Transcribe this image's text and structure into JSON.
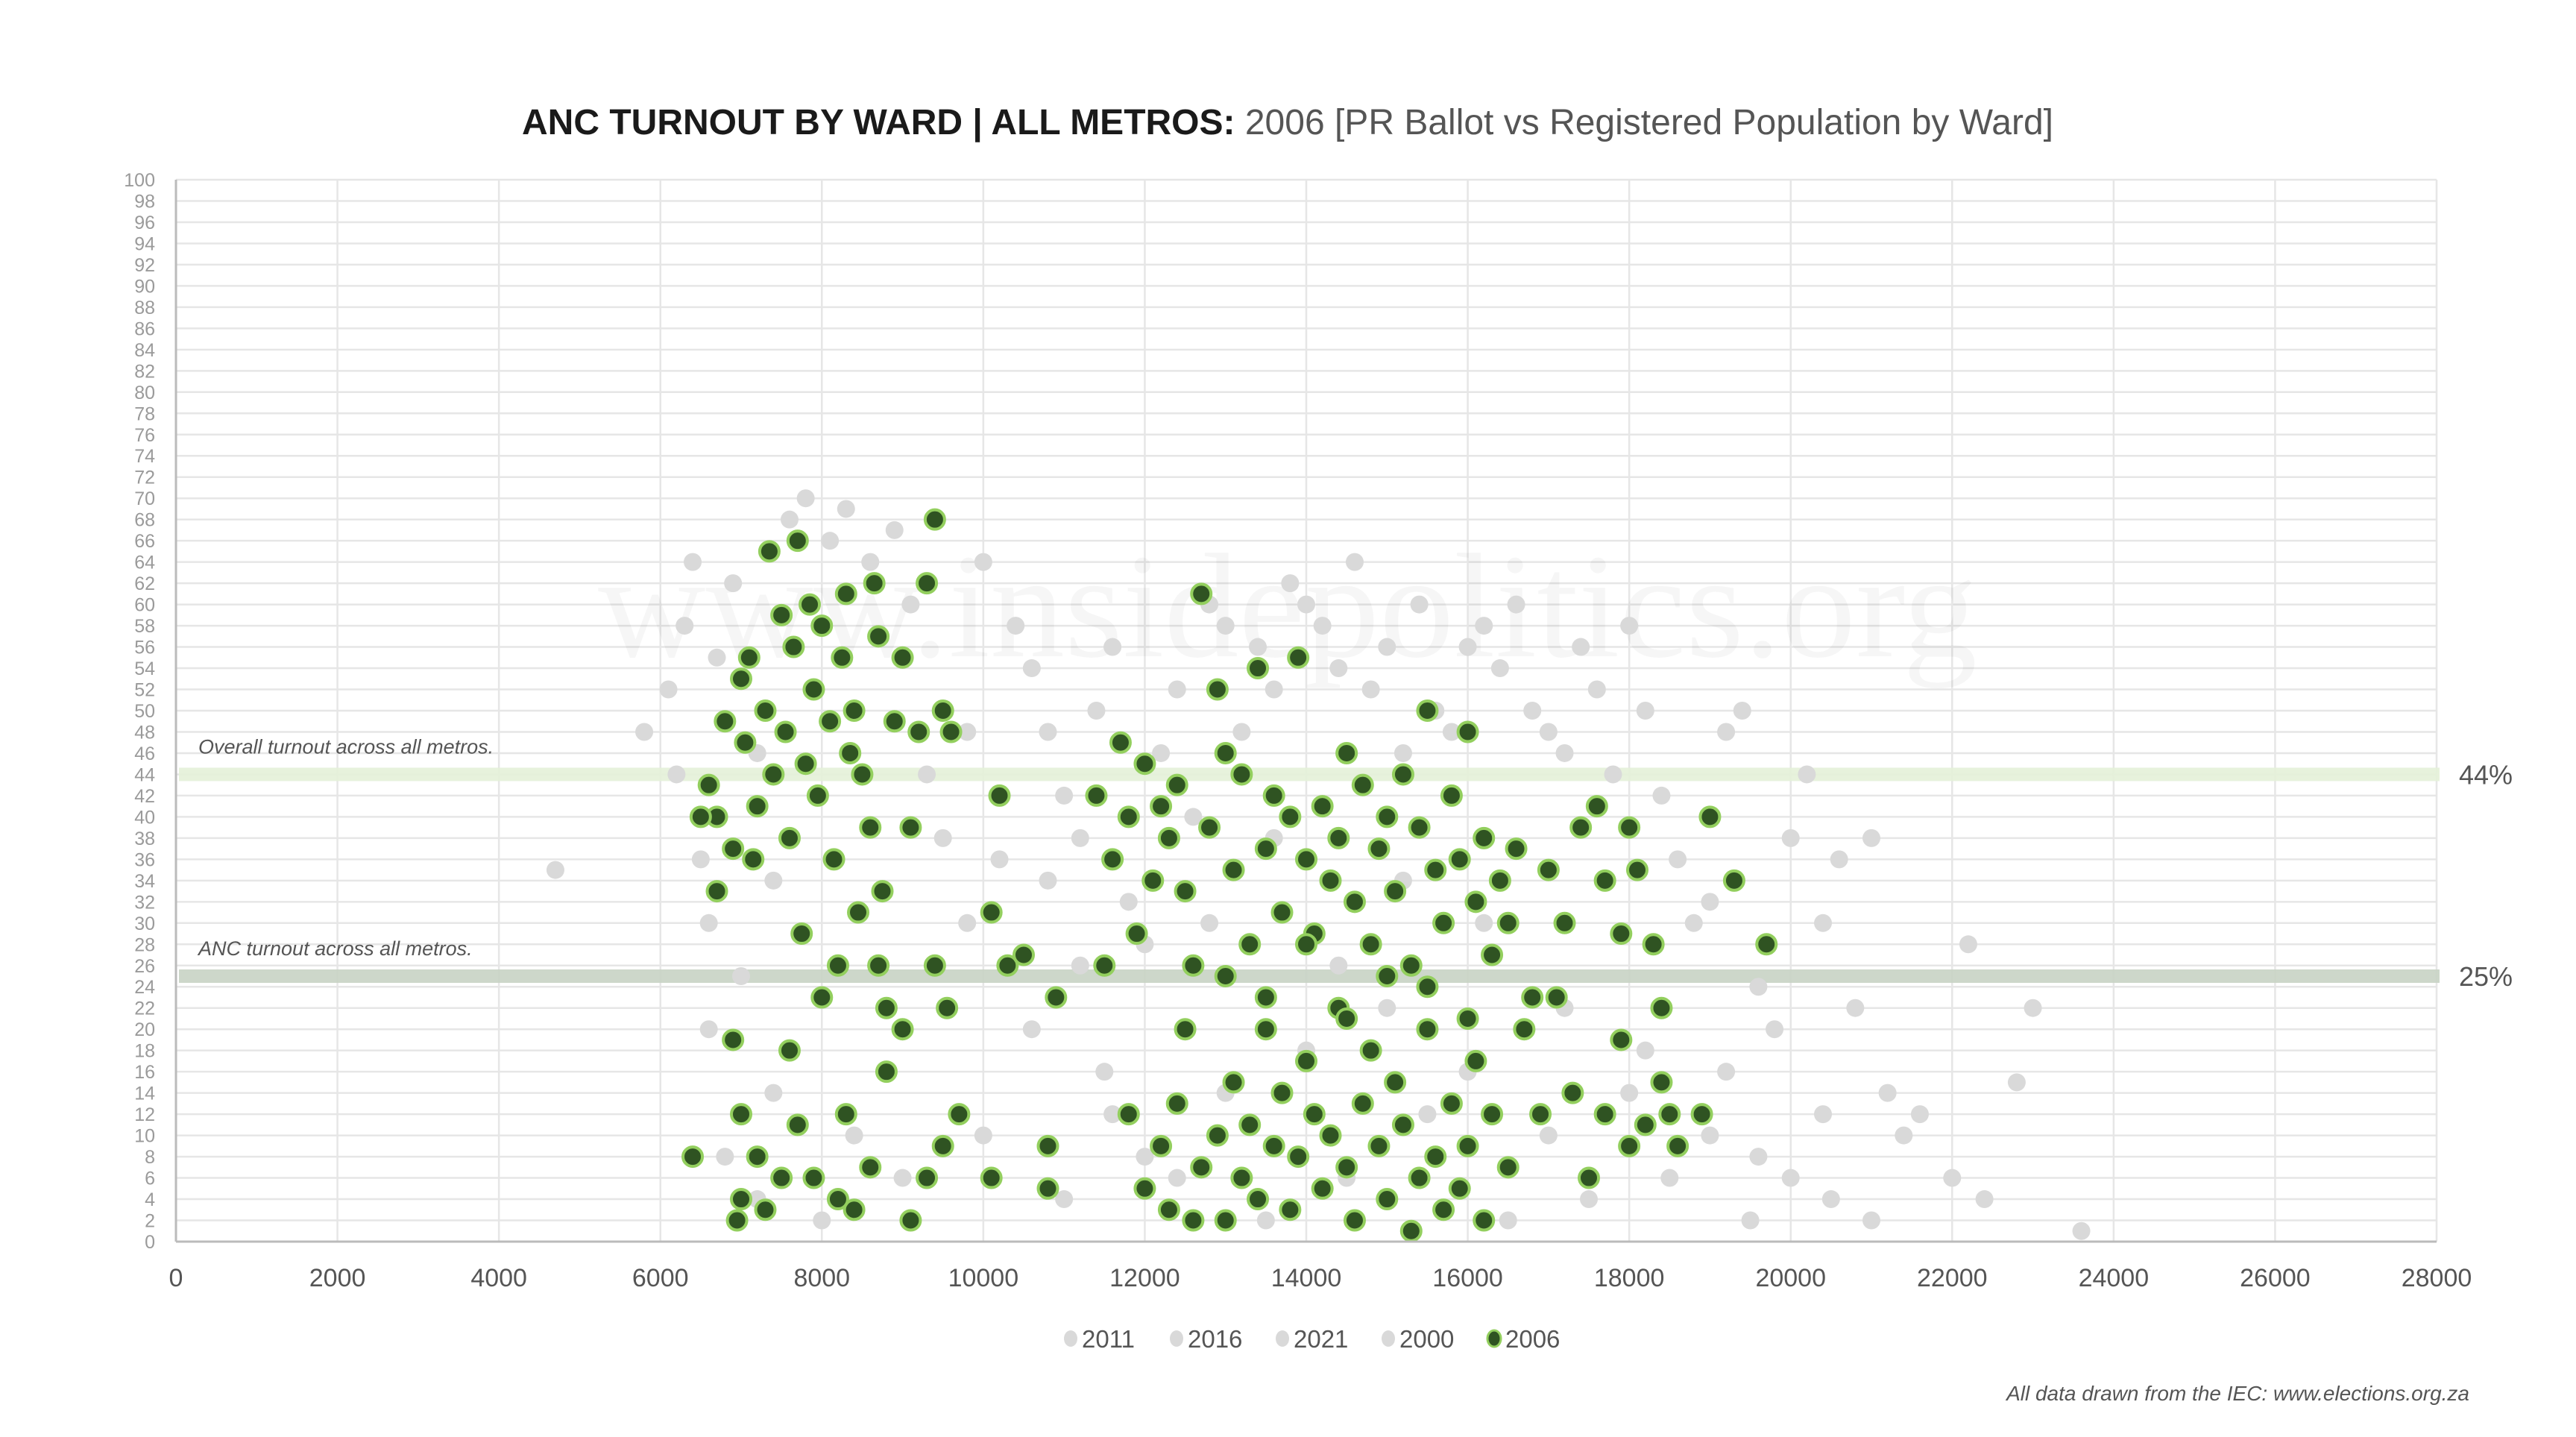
{
  "chart_data": {
    "type": "scatter",
    "title_bold": "ANC TURNOUT BY WARD | ALL METROS:",
    "title_rest": " 2006 [PR Ballot vs Registered Population by Ward]",
    "watermark": "www.insidepolitics.org",
    "xlabel": "",
    "ylabel": "",
    "xlim": [
      0,
      28000
    ],
    "ylim": [
      0,
      100
    ],
    "x_ticks": [
      0,
      2000,
      4000,
      6000,
      8000,
      10000,
      12000,
      14000,
      16000,
      18000,
      20000,
      22000,
      24000,
      26000,
      28000
    ],
    "y_tick_step": 2,
    "grid": true,
    "legend_position": "bottom",
    "legend": [
      "2011",
      "2016",
      "2021",
      "2000",
      "2006"
    ],
    "reference_lines": [
      {
        "value": 44,
        "label": "Overall turnout across all metros.",
        "value_label": "44%",
        "color": "#e4f1d8"
      },
      {
        "value": 25,
        "label": "ANC turnout across all metros.",
        "value_label": "25%",
        "color": "#c8d3c4"
      }
    ],
    "colors": {
      "highlight_fill": "#2f5322",
      "highlight_stroke": "#93cf5e",
      "other": "#d9d9d9"
    },
    "series_other": {
      "name": "2011/2016/2021/2000",
      "points": [
        [
          5800,
          48
        ],
        [
          6100,
          52
        ],
        [
          6200,
          44
        ],
        [
          6300,
          58
        ],
        [
          6400,
          64
        ],
        [
          6500,
          36
        ],
        [
          6600,
          30
        ],
        [
          6700,
          55
        ],
        [
          6900,
          62
        ],
        [
          7000,
          25
        ],
        [
          7200,
          46
        ],
        [
          7400,
          34
        ],
        [
          7600,
          68
        ],
        [
          7800,
          70
        ],
        [
          8100,
          66
        ],
        [
          8300,
          69
        ],
        [
          8600,
          64
        ],
        [
          8900,
          67
        ],
        [
          9100,
          60
        ],
        [
          9300,
          44
        ],
        [
          9500,
          38
        ],
        [
          9800,
          30
        ],
        [
          10000,
          64
        ],
        [
          10200,
          36
        ],
        [
          10400,
          58
        ],
        [
          10600,
          54
        ],
        [
          10800,
          48
        ],
        [
          11000,
          42
        ],
        [
          11200,
          38
        ],
        [
          11400,
          50
        ],
        [
          11600,
          56
        ],
        [
          11800,
          32
        ],
        [
          12000,
          28
        ],
        [
          12200,
          46
        ],
        [
          12400,
          52
        ],
        [
          12600,
          40
        ],
        [
          12800,
          60
        ],
        [
          13000,
          58
        ],
        [
          13200,
          48
        ],
        [
          13400,
          56
        ],
        [
          13600,
          52
        ],
        [
          13800,
          62
        ],
        [
          14000,
          60
        ],
        [
          14200,
          58
        ],
        [
          14400,
          54
        ],
        [
          14600,
          64
        ],
        [
          14800,
          52
        ],
        [
          15000,
          56
        ],
        [
          15200,
          46
        ],
        [
          15400,
          60
        ],
        [
          15600,
          50
        ],
        [
          15800,
          48
        ],
        [
          16000,
          56
        ],
        [
          16200,
          58
        ],
        [
          16400,
          54
        ],
        [
          16600,
          60
        ],
        [
          16800,
          50
        ],
        [
          17000,
          48
        ],
        [
          17200,
          46
        ],
        [
          17400,
          56
        ],
        [
          17600,
          52
        ],
        [
          17800,
          44
        ],
        [
          18000,
          58
        ],
        [
          18200,
          50
        ],
        [
          18400,
          42
        ],
        [
          18600,
          36
        ],
        [
          18800,
          30
        ],
        [
          19000,
          32
        ],
        [
          19200,
          48
        ],
        [
          19400,
          50
        ],
        [
          19600,
          24
        ],
        [
          19800,
          20
        ],
        [
          20000,
          38
        ],
        [
          20200,
          44
        ],
        [
          20400,
          30
        ],
        [
          20600,
          36
        ],
        [
          20800,
          22
        ],
        [
          21000,
          38
        ],
        [
          21200,
          14
        ],
        [
          21400,
          10
        ],
        [
          21600,
          12
        ],
        [
          22000,
          6
        ],
        [
          22200,
          28
        ],
        [
          22400,
          4
        ],
        [
          22800,
          15
        ],
        [
          23000,
          22
        ],
        [
          23600,
          1
        ],
        [
          4700,
          35
        ],
        [
          6800,
          8
        ],
        [
          7200,
          4
        ],
        [
          8000,
          2
        ],
        [
          9000,
          6
        ],
        [
          10000,
          10
        ],
        [
          11000,
          4
        ],
        [
          11500,
          16
        ],
        [
          12000,
          8
        ],
        [
          12500,
          20
        ],
        [
          13000,
          14
        ],
        [
          13500,
          2
        ],
        [
          14000,
          18
        ],
        [
          14500,
          6
        ],
        [
          15000,
          22
        ],
        [
          15500,
          12
        ],
        [
          16000,
          16
        ],
        [
          16500,
          2
        ],
        [
          17000,
          10
        ],
        [
          17500,
          4
        ],
        [
          18000,
          14
        ],
        [
          18500,
          6
        ],
        [
          19000,
          10
        ],
        [
          19500,
          2
        ],
        [
          20000,
          6
        ],
        [
          20500,
          4
        ],
        [
          21000,
          2
        ],
        [
          10600,
          20
        ],
        [
          11200,
          26
        ],
        [
          12800,
          30
        ],
        [
          13600,
          38
        ],
        [
          14400,
          26
        ],
        [
          15200,
          34
        ],
        [
          16200,
          30
        ],
        [
          17200,
          22
        ],
        [
          18200,
          18
        ],
        [
          9800,
          48
        ],
        [
          10800,
          34
        ],
        [
          11600,
          12
        ],
        [
          12400,
          6
        ],
        [
          19200,
          16
        ],
        [
          19600,
          8
        ],
        [
          20400,
          12
        ],
        [
          8400,
          10
        ],
        [
          7400,
          14
        ],
        [
          6600,
          20
        ]
      ]
    },
    "series_highlight": {
      "name": "2006",
      "points": [
        [
          6600,
          43
        ],
        [
          6700,
          40
        ],
        [
          6800,
          49
        ],
        [
          6900,
          37
        ],
        [
          7000,
          53
        ],
        [
          7050,
          47
        ],
        [
          7100,
          55
        ],
        [
          7150,
          36
        ],
        [
          7200,
          41
        ],
        [
          7300,
          50
        ],
        [
          7350,
          65
        ],
        [
          7400,
          44
        ],
        [
          7500,
          59
        ],
        [
          7550,
          48
        ],
        [
          7600,
          38
        ],
        [
          7650,
          56
        ],
        [
          7700,
          66
        ],
        [
          7750,
          29
        ],
        [
          7800,
          45
        ],
        [
          7850,
          60
        ],
        [
          7900,
          52
        ],
        [
          7950,
          42
        ],
        [
          8000,
          58
        ],
        [
          8100,
          49
        ],
        [
          8150,
          36
        ],
        [
          8200,
          26
        ],
        [
          8250,
          55
        ],
        [
          8300,
          61
        ],
        [
          8350,
          46
        ],
        [
          8400,
          50
        ],
        [
          8450,
          31
        ],
        [
          8500,
          44
        ],
        [
          8600,
          39
        ],
        [
          8650,
          62
        ],
        [
          8700,
          57
        ],
        [
          8750,
          33
        ],
        [
          8800,
          22
        ],
        [
          8900,
          49
        ],
        [
          9000,
          55
        ],
        [
          9100,
          39
        ],
        [
          9200,
          48
        ],
        [
          9300,
          62
        ],
        [
          9400,
          68
        ],
        [
          9500,
          50
        ],
        [
          9600,
          48
        ],
        [
          9400,
          26
        ],
        [
          9550,
          22
        ],
        [
          9700,
          12
        ],
        [
          9500,
          9
        ],
        [
          9300,
          6
        ],
        [
          9100,
          2
        ],
        [
          8800,
          16
        ],
        [
          8600,
          7
        ],
        [
          8400,
          3
        ],
        [
          8200,
          4
        ],
        [
          8000,
          23
        ],
        [
          7900,
          6
        ],
        [
          7600,
          18
        ],
        [
          7500,
          6
        ],
        [
          7200,
          8
        ],
        [
          7000,
          12
        ],
        [
          6950,
          2
        ],
        [
          6900,
          19
        ],
        [
          6700,
          33
        ],
        [
          6400,
          8
        ],
        [
          6500,
          40
        ],
        [
          7000,
          4
        ],
        [
          7300,
          3
        ],
        [
          7700,
          11
        ],
        [
          8300,
          12
        ],
        [
          8700,
          26
        ],
        [
          9000,
          20
        ],
        [
          10100,
          31
        ],
        [
          10200,
          42
        ],
        [
          10300,
          26
        ],
        [
          10500,
          27
        ],
        [
          10800,
          9
        ],
        [
          10900,
          23
        ],
        [
          10800,
          5
        ],
        [
          10100,
          6
        ],
        [
          11400,
          42
        ],
        [
          11500,
          26
        ],
        [
          11600,
          36
        ],
        [
          11700,
          47
        ],
        [
          11800,
          40
        ],
        [
          11900,
          29
        ],
        [
          12000,
          45
        ],
        [
          12100,
          34
        ],
        [
          12200,
          41
        ],
        [
          12300,
          38
        ],
        [
          12400,
          43
        ],
        [
          12500,
          33
        ],
        [
          12500,
          20
        ],
        [
          12600,
          26
        ],
        [
          12700,
          61
        ],
        [
          12800,
          39
        ],
        [
          12900,
          52
        ],
        [
          13000,
          46
        ],
        [
          13100,
          35
        ],
        [
          13200,
          44
        ],
        [
          13300,
          28
        ],
        [
          13400,
          54
        ],
        [
          13500,
          37
        ],
        [
          13600,
          42
        ],
        [
          13700,
          31
        ],
        [
          13800,
          40
        ],
        [
          13900,
          55
        ],
        [
          14000,
          36
        ],
        [
          14100,
          29
        ],
        [
          14200,
          41
        ],
        [
          14300,
          34
        ],
        [
          14400,
          38
        ],
        [
          14500,
          46
        ],
        [
          14600,
          32
        ],
        [
          14700,
          43
        ],
        [
          14800,
          28
        ],
        [
          14900,
          37
        ],
        [
          15000,
          40
        ],
        [
          15100,
          33
        ],
        [
          15200,
          44
        ],
        [
          15300,
          26
        ],
        [
          15400,
          39
        ],
        [
          15500,
          50
        ],
        [
          15600,
          35
        ],
        [
          15700,
          30
        ],
        [
          15800,
          42
        ],
        [
          15900,
          36
        ],
        [
          16000,
          48
        ],
        [
          16100,
          32
        ],
        [
          16200,
          38
        ],
        [
          16300,
          27
        ],
        [
          16400,
          34
        ],
        [
          16500,
          30
        ],
        [
          16600,
          37
        ],
        [
          16800,
          23
        ],
        [
          17000,
          35
        ],
        [
          17200,
          30
        ],
        [
          17400,
          39
        ],
        [
          17600,
          41
        ],
        [
          17700,
          34
        ],
        [
          17900,
          29
        ],
        [
          18000,
          39
        ],
        [
          18100,
          35
        ],
        [
          18300,
          28
        ],
        [
          18400,
          22
        ],
        [
          19000,
          40
        ],
        [
          19300,
          34
        ],
        [
          19700,
          28
        ],
        [
          11800,
          12
        ],
        [
          12000,
          5
        ],
        [
          12200,
          9
        ],
        [
          12300,
          3
        ],
        [
          12400,
          13
        ],
        [
          12600,
          2
        ],
        [
          12700,
          7
        ],
        [
          12900,
          10
        ],
        [
          13000,
          2
        ],
        [
          13100,
          15
        ],
        [
          13200,
          6
        ],
        [
          13300,
          11
        ],
        [
          13400,
          4
        ],
        [
          13500,
          20
        ],
        [
          13600,
          9
        ],
        [
          13700,
          14
        ],
        [
          13800,
          3
        ],
        [
          13900,
          8
        ],
        [
          14000,
          17
        ],
        [
          14100,
          12
        ],
        [
          14200,
          5
        ],
        [
          14300,
          10
        ],
        [
          14400,
          22
        ],
        [
          14500,
          7
        ],
        [
          14600,
          2
        ],
        [
          14700,
          13
        ],
        [
          14800,
          18
        ],
        [
          14900,
          9
        ],
        [
          15000,
          4
        ],
        [
          15100,
          15
        ],
        [
          15200,
          11
        ],
        [
          15300,
          1
        ],
        [
          15400,
          6
        ],
        [
          15500,
          20
        ],
        [
          15600,
          8
        ],
        [
          15700,
          3
        ],
        [
          15800,
          13
        ],
        [
          15900,
          5
        ],
        [
          16000,
          9
        ],
        [
          16100,
          17
        ],
        [
          16200,
          2
        ],
        [
          16300,
          12
        ],
        [
          16500,
          7
        ],
        [
          16700,
          20
        ],
        [
          16900,
          12
        ],
        [
          17100,
          23
        ],
        [
          17300,
          14
        ],
        [
          17500,
          6
        ],
        [
          17700,
          12
        ],
        [
          17900,
          19
        ],
        [
          18000,
          9
        ],
        [
          18200,
          11
        ],
        [
          18400,
          15
        ],
        [
          18500,
          12
        ],
        [
          18600,
          9
        ],
        [
          18900,
          12
        ],
        [
          13000,
          25
        ],
        [
          13500,
          23
        ],
        [
          14000,
          28
        ],
        [
          14500,
          21
        ],
        [
          15000,
          25
        ],
        [
          15500,
          24
        ],
        [
          16000,
          21
        ]
      ]
    }
  },
  "footer": "All data drawn from the IEC: www.elections.org.za"
}
